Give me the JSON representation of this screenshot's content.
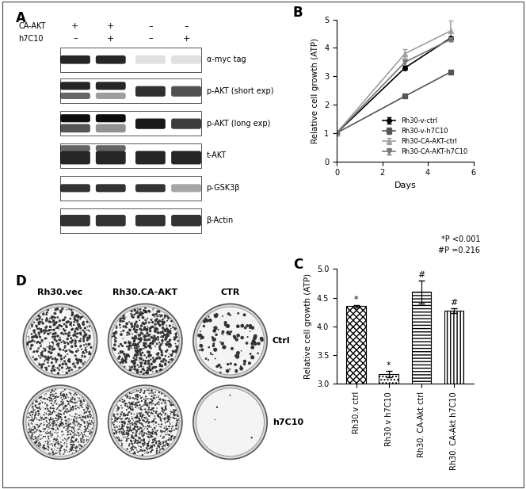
{
  "chart_data": [
    {
      "type": "line",
      "title": "B",
      "x": [
        0,
        3,
        5
      ],
      "xlabel": "Days",
      "ylabel": "Relative cell growth (ATP)",
      "xlim": [
        0,
        6
      ],
      "xticks": [
        0,
        2,
        4,
        6
      ],
      "ylim": [
        0,
        5
      ],
      "yticks": [
        0,
        1,
        2,
        3,
        4,
        5
      ],
      "legend": "lower right",
      "series": [
        {
          "name": "Rh30-v-ctrl",
          "color": "#000000",
          "marker": "o",
          "values": [
            1,
            3.3,
            4.35
          ],
          "errors": [
            0,
            0.08,
            0.05
          ]
        },
        {
          "name": "Rh30-v-h7C10",
          "color": "#555555",
          "marker": "s",
          "values": [
            1,
            2.3,
            3.15
          ],
          "errors": [
            0,
            0.05,
            0.05
          ]
        },
        {
          "name": "Rh30-CA-AKT-ctrl",
          "color": "#a0a0a0",
          "marker": "^",
          "values": [
            1,
            3.8,
            4.6
          ],
          "errors": [
            0,
            0.15,
            0.35
          ]
        },
        {
          "name": "Rh30-CA-AKT-h7C10",
          "color": "#777777",
          "marker": "v",
          "values": [
            1,
            3.5,
            4.3
          ],
          "errors": [
            0,
            0.1,
            0.05
          ]
        }
      ]
    },
    {
      "type": "bar",
      "title": "C",
      "categories": [
        "Rh30.v ctrl",
        "Rh30.v h7C10",
        "Rh30. CA-Akt ctrl",
        "Rh30. CA-Akt h7C10"
      ],
      "values": [
        4.35,
        3.17,
        4.6,
        4.27
      ],
      "errors": [
        0.02,
        0.05,
        0.2,
        0.04
      ],
      "color": "#ffffff",
      "ylabel": "Relative cell growth (ATP)",
      "ylim": [
        3.0,
        5.0
      ],
      "yticks": [
        3.0,
        3.5,
        4.0,
        4.5,
        5.0
      ],
      "bar_marks": [
        "*",
        "*",
        "#",
        "#"
      ],
      "annotations": [
        "*P <0.001",
        "#P =0.216"
      ]
    }
  ],
  "blot": {
    "label": "A",
    "conditions": [
      {
        "name": "CA-AKT",
        "signs": [
          "+",
          "+",
          "–",
          "–"
        ]
      },
      {
        "name": "h7C10",
        "signs": [
          "–",
          "+",
          "–",
          "+"
        ]
      }
    ],
    "rows": [
      "α-myc tag",
      "p-AKT (short exp)",
      "p-AKT (long exp)",
      "t-AKT",
      "p-GSK3β",
      "β-Actin"
    ]
  },
  "plates": {
    "label": "D",
    "columns": [
      "Rh30.vec",
      "Rh30.CA-AKT",
      "CTR"
    ],
    "rows": [
      "Ctrl",
      "h7C10"
    ]
  }
}
